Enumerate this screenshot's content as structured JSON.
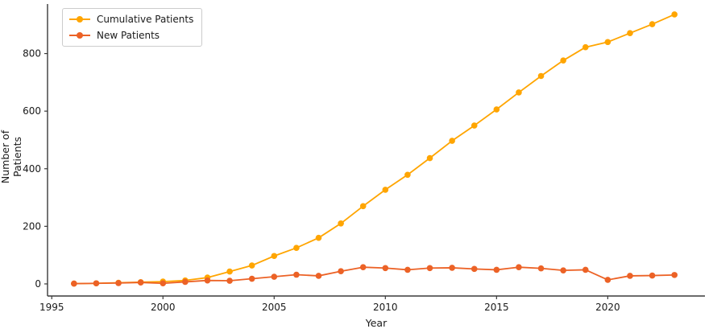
{
  "figure": {
    "xlabel": "Year",
    "ylabel": "Number of Patients",
    "background_color": "#ffffff",
    "spine_color": "#3a3a3a",
    "text_color": "#1a1a1a",
    "legend": {
      "items": [
        {
          "label": "Cumulative Patients",
          "color": "#FFA500"
        },
        {
          "label": "New Patients",
          "color": "#EC6226"
        }
      ]
    }
  },
  "chart_data": {
    "type": "line",
    "title": "",
    "xlabel": "Year",
    "ylabel": "Number of Patients",
    "x": [
      1996,
      1997,
      1998,
      1999,
      2000,
      2001,
      2002,
      2003,
      2004,
      2005,
      2006,
      2007,
      2008,
      2009,
      2010,
      2011,
      2012,
      2013,
      2014,
      2015,
      2016,
      2017,
      2018,
      2019,
      2020,
      2021,
      2022,
      2023
    ],
    "series": [
      {
        "name": "Cumulative Patients",
        "color": "#FFA500",
        "marker": "circle",
        "values": [
          1,
          2,
          4,
          6,
          8,
          12,
          22,
          43,
          64,
          97,
          125,
          160,
          210,
          270,
          327,
          379,
          437,
          497,
          550,
          606,
          665,
          722,
          776,
          822,
          840,
          871,
          902,
          936
        ]
      },
      {
        "name": "New Patients",
        "color": "#EC6226",
        "marker": "circle",
        "values": [
          1,
          2,
          3,
          5,
          2,
          7,
          12,
          11,
          18,
          25,
          32,
          28,
          44,
          58,
          55,
          49,
          55,
          56,
          52,
          49,
          58,
          54,
          47,
          49,
          14,
          28,
          29,
          31
        ]
      }
    ],
    "xticks": [
      1995,
      2000,
      2005,
      2010,
      2015,
      2020
    ],
    "yticks": [
      0,
      200,
      400,
      600,
      800
    ],
    "xlim": [
      1994.81,
      2024.37
    ],
    "ylim": [
      -42,
      972
    ],
    "grid": false,
    "legend_position": "upper left"
  }
}
